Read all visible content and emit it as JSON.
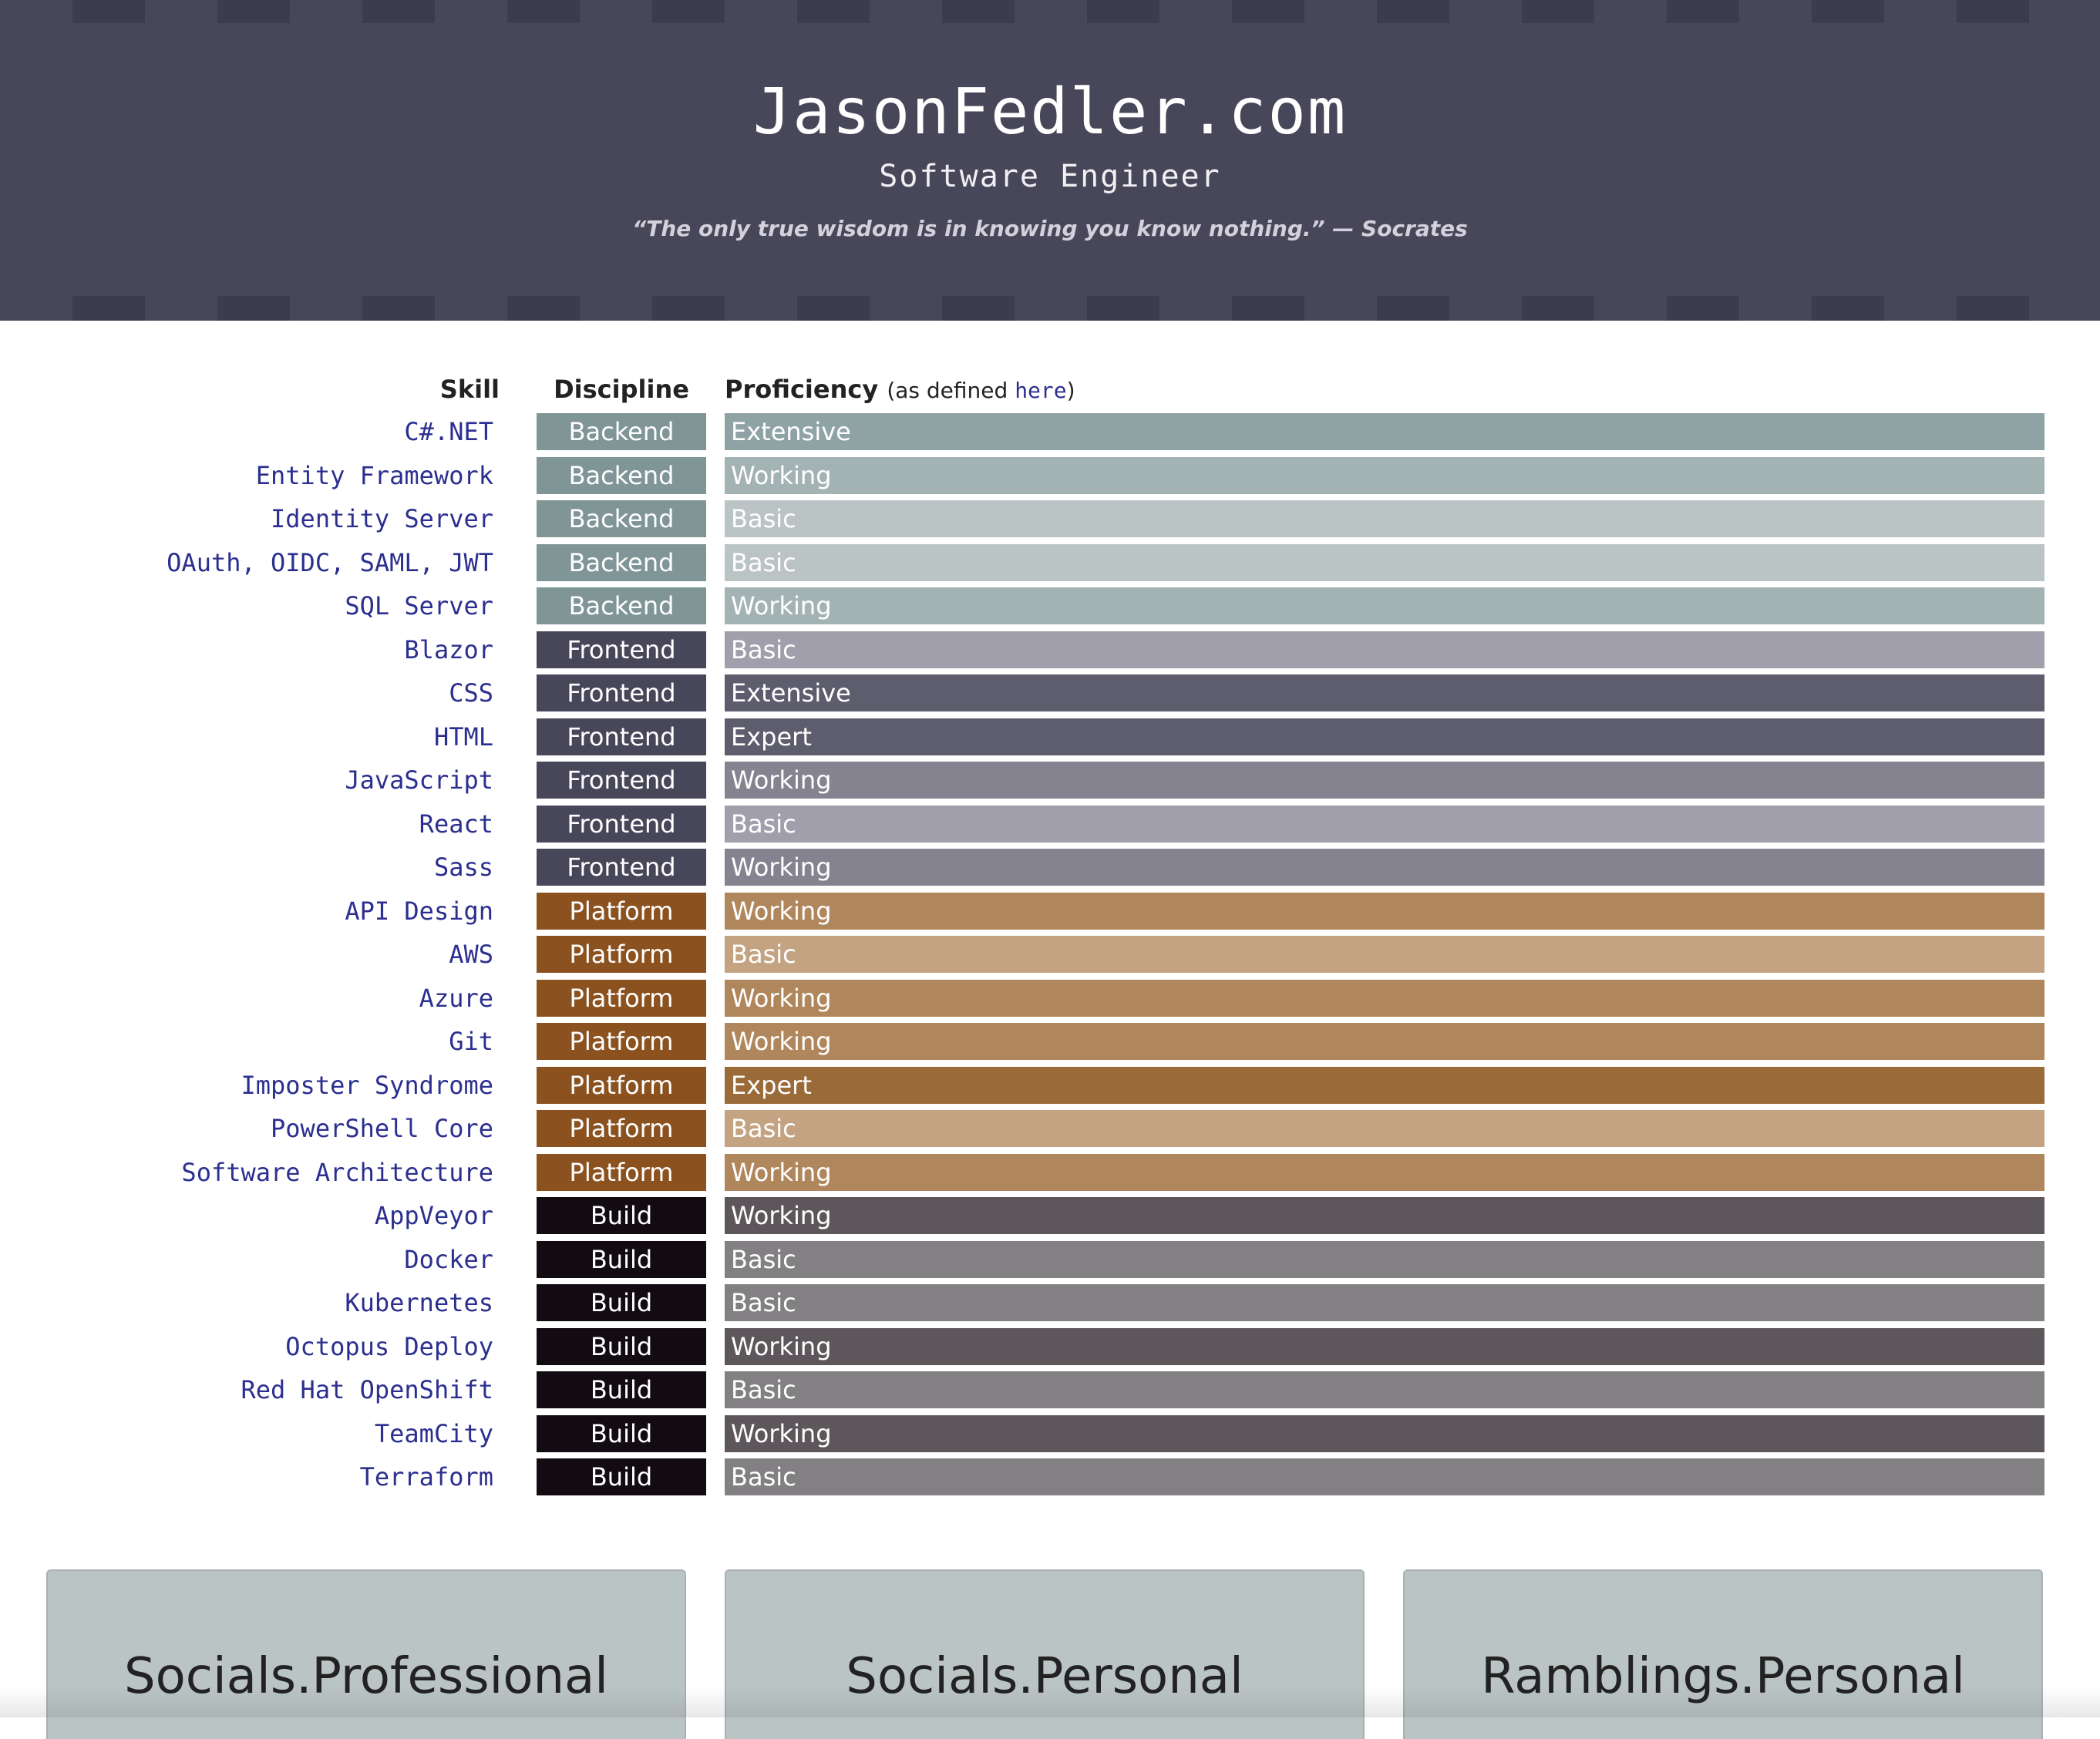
{
  "header": {
    "title": "JasonFedler.com",
    "subtitle": "Software Engineer",
    "quote": "“The only true wisdom is in knowing you know nothing.” — Socrates"
  },
  "table": {
    "col_skill": "Skill",
    "col_discipline": "Discipline",
    "col_proficiency": "Proficiency",
    "proficiency_note_prefix": "(as defined ",
    "proficiency_link": "here",
    "proficiency_note_suffix": ")"
  },
  "discipline_colors": {
    "Backend": "#7f9596",
    "Frontend": "#484759",
    "Platform": "#8b5220",
    "Build": "#120b11"
  },
  "proficiency_colors": {
    "Backend": {
      "Extensive": "#90a3a4",
      "Working": "#a3b2b3",
      "Basic": "#bac4c4"
    },
    "Frontend": {
      "Extensive": "#5e5d6e",
      "Expert": "#5e5d6e",
      "Working": "#84838f",
      "Basic": "#a09fab"
    },
    "Platform": {
      "Expert": "#9a6a39",
      "Working": "#b0875c",
      "Basic": "#c4a382"
    },
    "Build": {
      "Working": "#5d575c",
      "Basic": "#838083"
    }
  },
  "skills": [
    {
      "name": "C#.NET",
      "discipline": "Backend",
      "proficiency": "Extensive"
    },
    {
      "name": "Entity Framework",
      "discipline": "Backend",
      "proficiency": "Working"
    },
    {
      "name": "Identity Server",
      "discipline": "Backend",
      "proficiency": "Basic"
    },
    {
      "name": "OAuth, OIDC, SAML, JWT",
      "discipline": "Backend",
      "proficiency": "Basic"
    },
    {
      "name": "SQL Server",
      "discipline": "Backend",
      "proficiency": "Working"
    },
    {
      "name": "Blazor",
      "discipline": "Frontend",
      "proficiency": "Basic"
    },
    {
      "name": "CSS",
      "discipline": "Frontend",
      "proficiency": "Extensive"
    },
    {
      "name": "HTML",
      "discipline": "Frontend",
      "proficiency": "Expert"
    },
    {
      "name": "JavaScript",
      "discipline": "Frontend",
      "proficiency": "Working"
    },
    {
      "name": "React",
      "discipline": "Frontend",
      "proficiency": "Basic"
    },
    {
      "name": "Sass",
      "discipline": "Frontend",
      "proficiency": "Working"
    },
    {
      "name": "API Design",
      "discipline": "Platform",
      "proficiency": "Working"
    },
    {
      "name": "AWS",
      "discipline": "Platform",
      "proficiency": "Basic"
    },
    {
      "name": "Azure",
      "discipline": "Platform",
      "proficiency": "Working"
    },
    {
      "name": "Git",
      "discipline": "Platform",
      "proficiency": "Working"
    },
    {
      "name": "Imposter Syndrome",
      "discipline": "Platform",
      "proficiency": "Expert"
    },
    {
      "name": "PowerShell Core",
      "discipline": "Platform",
      "proficiency": "Basic"
    },
    {
      "name": "Software Architecture",
      "discipline": "Platform",
      "proficiency": "Working"
    },
    {
      "name": "AppVeyor",
      "discipline": "Build",
      "proficiency": "Working"
    },
    {
      "name": "Docker",
      "discipline": "Build",
      "proficiency": "Basic"
    },
    {
      "name": "Kubernetes",
      "discipline": "Build",
      "proficiency": "Basic"
    },
    {
      "name": "Octopus Deploy",
      "discipline": "Build",
      "proficiency": "Working"
    },
    {
      "name": "Red Hat OpenShift",
      "discipline": "Build",
      "proficiency": "Basic"
    },
    {
      "name": "TeamCity",
      "discipline": "Build",
      "proficiency": "Working"
    },
    {
      "name": "Terraform",
      "discipline": "Build",
      "proficiency": "Basic"
    }
  ],
  "cards": [
    {
      "label": "Socials.Professional"
    },
    {
      "label": "Socials.Personal"
    },
    {
      "label": "Ramblings.Personal"
    }
  ]
}
